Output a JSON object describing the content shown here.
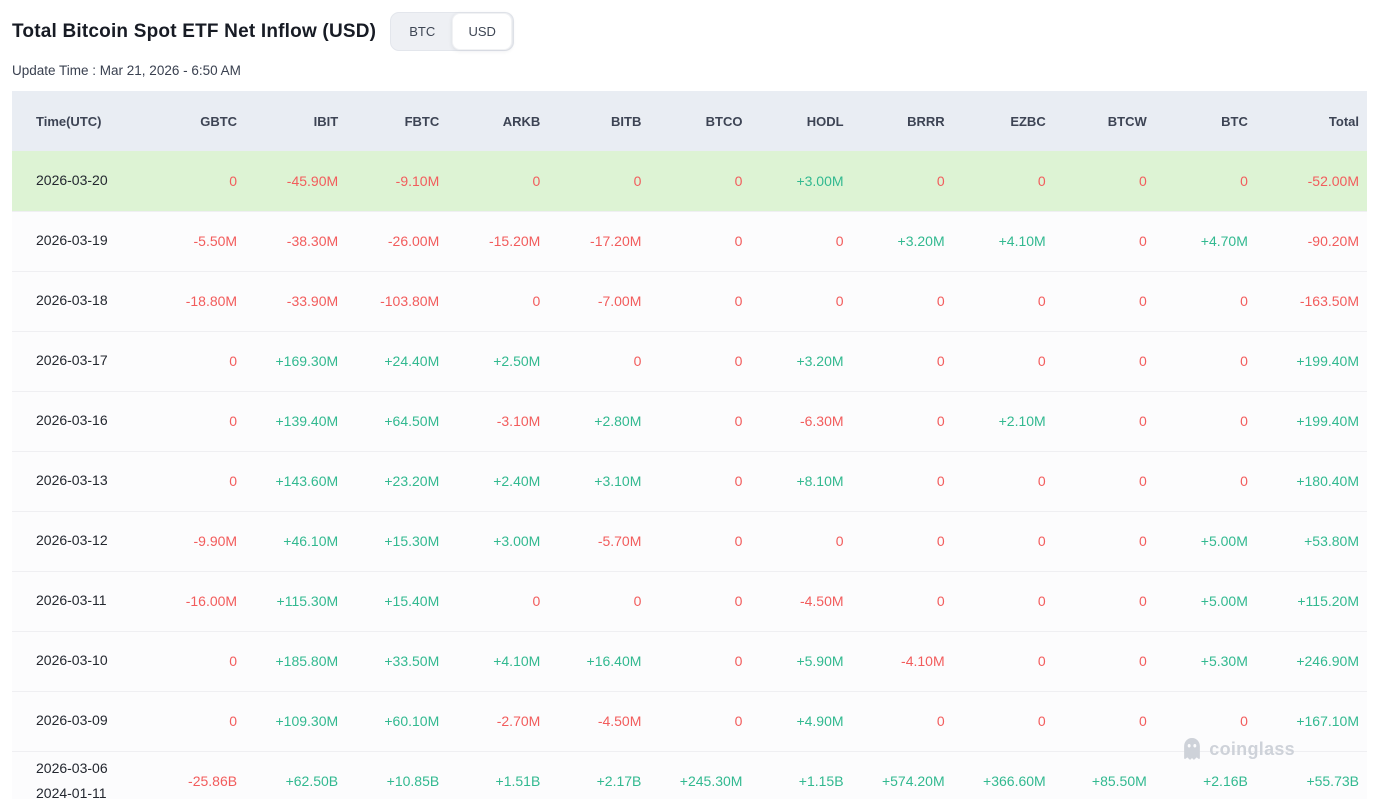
{
  "header": {
    "title": "Total Bitcoin Spot ETF Net Inflow (USD)",
    "toggle": {
      "options": [
        "BTC",
        "USD"
      ],
      "selected": "USD"
    },
    "update_time": "Update Time : Mar 21, 2026 - 6:50 AM"
  },
  "watermark": "coinglass",
  "colors": {
    "positive": "#32b990",
    "negative": "#f25c5c",
    "highlight_row": "#ddf3d4",
    "header_row": "#e9edf3"
  },
  "table": {
    "columns": [
      "Time(UTC)",
      "GBTC",
      "IBIT",
      "FBTC",
      "ARKB",
      "BITB",
      "BTCO",
      "HODL",
      "BRRR",
      "EZBC",
      "BTCW",
      "BTC",
      "Total"
    ],
    "rows": [
      {
        "date": [
          "2026-03-20"
        ],
        "highlight": true,
        "values": [
          "0",
          "-45.90M",
          "-9.10M",
          "0",
          "0",
          "0",
          "+3.00M",
          "0",
          "0",
          "0",
          "0",
          "-52.00M"
        ]
      },
      {
        "date": [
          "2026-03-19"
        ],
        "values": [
          "-5.50M",
          "-38.30M",
          "-26.00M",
          "-15.20M",
          "-17.20M",
          "0",
          "0",
          "+3.20M",
          "+4.10M",
          "0",
          "+4.70M",
          "-90.20M"
        ]
      },
      {
        "date": [
          "2026-03-18"
        ],
        "values": [
          "-18.80M",
          "-33.90M",
          "-103.80M",
          "0",
          "-7.00M",
          "0",
          "0",
          "0",
          "0",
          "0",
          "0",
          "-163.50M"
        ]
      },
      {
        "date": [
          "2026-03-17"
        ],
        "values": [
          "0",
          "+169.30M",
          "+24.40M",
          "+2.50M",
          "0",
          "0",
          "+3.20M",
          "0",
          "0",
          "0",
          "0",
          "+199.40M"
        ]
      },
      {
        "date": [
          "2026-03-16"
        ],
        "values": [
          "0",
          "+139.40M",
          "+64.50M",
          "-3.10M",
          "+2.80M",
          "0",
          "-6.30M",
          "0",
          "+2.10M",
          "0",
          "0",
          "+199.40M"
        ]
      },
      {
        "date": [
          "2026-03-13"
        ],
        "values": [
          "0",
          "+143.60M",
          "+23.20M",
          "+2.40M",
          "+3.10M",
          "0",
          "+8.10M",
          "0",
          "0",
          "0",
          "0",
          "+180.40M"
        ]
      },
      {
        "date": [
          "2026-03-12"
        ],
        "values": [
          "-9.90M",
          "+46.10M",
          "+15.30M",
          "+3.00M",
          "-5.70M",
          "0",
          "0",
          "0",
          "0",
          "0",
          "+5.00M",
          "+53.80M"
        ]
      },
      {
        "date": [
          "2026-03-11"
        ],
        "values": [
          "-16.00M",
          "+115.30M",
          "+15.40M",
          "0",
          "0",
          "0",
          "-4.50M",
          "0",
          "0",
          "0",
          "+5.00M",
          "+115.20M"
        ]
      },
      {
        "date": [
          "2026-03-10"
        ],
        "values": [
          "0",
          "+185.80M",
          "+33.50M",
          "+4.10M",
          "+16.40M",
          "0",
          "+5.90M",
          "-4.10M",
          "0",
          "0",
          "+5.30M",
          "+246.90M"
        ]
      },
      {
        "date": [
          "2026-03-09"
        ],
        "values": [
          "0",
          "+109.30M",
          "+60.10M",
          "-2.70M",
          "-4.50M",
          "0",
          "+4.90M",
          "0",
          "0",
          "0",
          "0",
          "+167.10M"
        ]
      },
      {
        "date": [
          "2026-03-06",
          "2024-01-11"
        ],
        "values": [
          "-25.86B",
          "+62.50B",
          "+10.85B",
          "+1.51B",
          "+2.17B",
          "+245.30M",
          "+1.15B",
          "+574.20M",
          "+366.60M",
          "+85.50M",
          "+2.16B",
          "+55.73B"
        ]
      }
    ]
  }
}
